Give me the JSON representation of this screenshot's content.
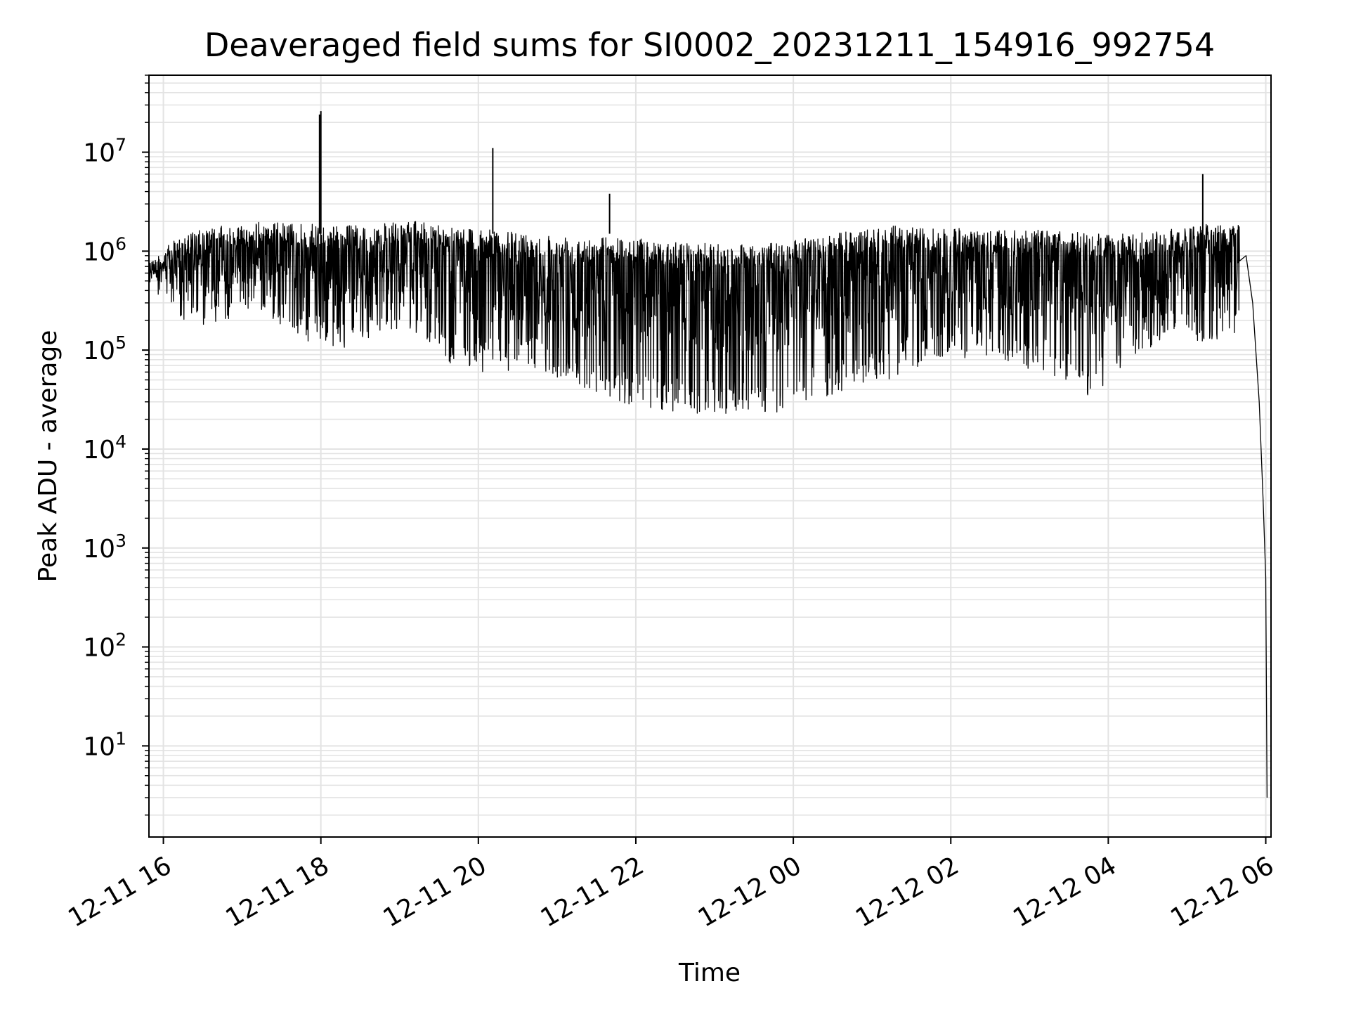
{
  "chart_data": {
    "type": "line",
    "title": "Deaveraged field sums for SI0002_20231211_154916_992754",
    "xlabel": "Time",
    "ylabel": "Peak ADU - average",
    "yscale": "log",
    "ylim": [
      1.2,
      60000000
    ],
    "xlim": [
      "2023-12-11 15:49",
      "2023-12-12 06:04"
    ],
    "grid": true,
    "x_tick_labels": [
      "12-11 16",
      "12-11 18",
      "12-11 20",
      "12-11 22",
      "12-12 00",
      "12-12 02",
      "12-12 04",
      "12-12 06"
    ],
    "y_tick_labels": [
      {
        "base": "10",
        "exp": "1"
      },
      {
        "base": "10",
        "exp": "2"
      },
      {
        "base": "10",
        "exp": "3"
      },
      {
        "base": "10",
        "exp": "4"
      },
      {
        "base": "10",
        "exp": "5"
      },
      {
        "base": "10",
        "exp": "6"
      },
      {
        "base": "10",
        "exp": "7"
      }
    ],
    "series": [
      {
        "color": "#000000",
        "envelope": {
          "time": [
            "2023-12-11 15:49",
            "2023-12-11 16:15",
            "2023-12-11 16:45",
            "2023-12-11 17:15",
            "2023-12-11 17:45",
            "2023-12-11 18:15",
            "2023-12-11 18:45",
            "2023-12-11 19:15",
            "2023-12-11 19:45",
            "2023-12-11 20:15",
            "2023-12-11 20:45",
            "2023-12-11 21:15",
            "2023-12-11 21:45",
            "2023-12-11 22:15",
            "2023-12-11 22:45",
            "2023-12-11 23:15",
            "2023-12-11 23:45",
            "2023-12-12 00:15",
            "2023-12-12 00:45",
            "2023-12-12 01:15",
            "2023-12-12 01:45",
            "2023-12-12 02:15",
            "2023-12-12 02:45",
            "2023-12-12 03:15",
            "2023-12-12 03:45",
            "2023-12-12 04:15",
            "2023-12-12 04:45",
            "2023-12-12 05:15",
            "2023-12-12 05:40"
          ],
          "upper": [
            800000,
            1500000,
            1800000,
            2000000,
            1900000,
            1800000,
            1900000,
            2000000,
            1800000,
            1600000,
            1500000,
            1450000,
            1400000,
            1300000,
            1200000,
            1200000,
            1200000,
            1400000,
            1600000,
            1800000,
            1700000,
            1700000,
            1600000,
            1700000,
            1500000,
            1500000,
            1700000,
            1900000,
            2000000
          ],
          "lower": [
            500000,
            150000,
            200000,
            250000,
            120000,
            100000,
            150000,
            150000,
            60000,
            60000,
            60000,
            40000,
            30000,
            25000,
            22000,
            22000,
            22000,
            30000,
            40000,
            50000,
            80000,
            80000,
            70000,
            60000,
            30000,
            80000,
            130000,
            120000,
            150000
          ]
        },
        "tail": [
          {
            "time": "2023-12-12 05:45",
            "value": 900000
          },
          {
            "time": "2023-12-12 05:50",
            "value": 300000
          },
          {
            "time": "2023-12-12 05:55",
            "value": 30000
          },
          {
            "time": "2023-12-12 05:58",
            "value": 3000
          },
          {
            "time": "2023-12-12 06:00",
            "value": 500
          },
          {
            "time": "2023-12-12 06:01",
            "value": 3
          }
        ],
        "spikes": [
          {
            "time": "2023-12-11 17:59",
            "value": 24000000
          },
          {
            "time": "2023-12-11 18:00",
            "value": 26000000
          },
          {
            "time": "2023-12-11 20:11",
            "value": 11000000
          },
          {
            "time": "2023-12-11 21:40",
            "value": 3800000
          },
          {
            "time": "2023-12-12 05:12",
            "value": 6000000
          }
        ]
      }
    ]
  }
}
